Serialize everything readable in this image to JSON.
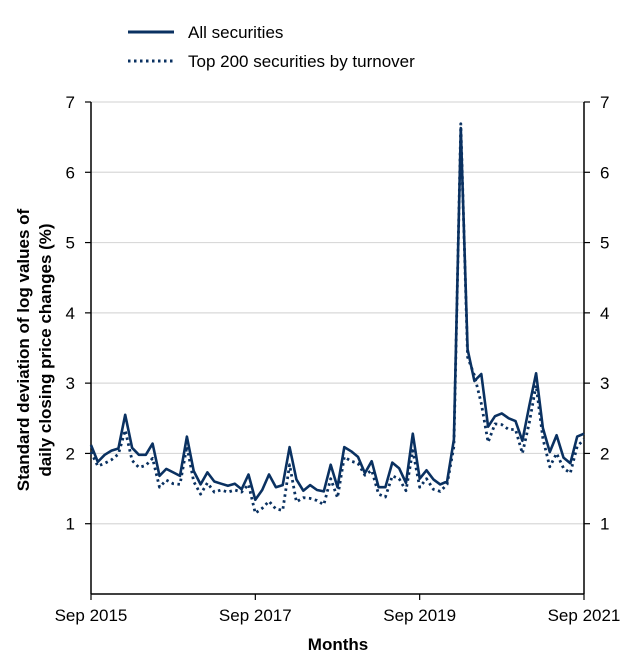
{
  "chart_data": {
    "type": "line",
    "xlabel": "Months",
    "ylabel_line1": "Standard deviation of log values of",
    "ylabel_line2": "daily closing price changes (%)",
    "ylim": [
      0,
      7
    ],
    "yticks": [
      1,
      2,
      3,
      4,
      5,
      6,
      7
    ],
    "xlim": [
      "2015-09",
      "2021-09"
    ],
    "xticks": [
      {
        "date": "2015-09",
        "label": "Sep 2015"
      },
      {
        "date": "2017-09",
        "label": "Sep 2017"
      },
      {
        "date": "2019-09",
        "label": "Sep 2019"
      },
      {
        "date": "2021-09",
        "label": "Sep 2021"
      }
    ],
    "grid": true,
    "legend_position": "top-left",
    "colors": {
      "series": "#0a3161",
      "grid": "#d9d9d9"
    },
    "x": [
      "2015-09",
      "2015-10",
      "2015-11",
      "2015-12",
      "2016-01",
      "2016-02",
      "2016-03",
      "2016-04",
      "2016-05",
      "2016-06",
      "2016-07",
      "2016-08",
      "2016-09",
      "2016-10",
      "2016-11",
      "2016-12",
      "2017-01",
      "2017-02",
      "2017-03",
      "2017-04",
      "2017-05",
      "2017-06",
      "2017-07",
      "2017-08",
      "2017-09",
      "2017-10",
      "2017-11",
      "2017-12",
      "2018-01",
      "2018-02",
      "2018-03",
      "2018-04",
      "2018-05",
      "2018-06",
      "2018-07",
      "2018-08",
      "2018-09",
      "2018-10",
      "2018-11",
      "2018-12",
      "2019-01",
      "2019-02",
      "2019-03",
      "2019-04",
      "2019-05",
      "2019-06",
      "2019-07",
      "2019-08",
      "2019-09",
      "2019-10",
      "2019-11",
      "2019-12",
      "2020-01",
      "2020-02",
      "2020-03",
      "2020-04",
      "2020-05",
      "2020-06",
      "2020-07",
      "2020-08",
      "2020-09",
      "2020-10",
      "2020-11",
      "2020-12",
      "2021-01",
      "2021-02",
      "2021-03",
      "2021-04",
      "2021-05",
      "2021-06",
      "2021-07",
      "2021-08",
      "2021-09"
    ],
    "series": [
      {
        "name": "All securities",
        "style": "solid",
        "values": [
          2.12,
          1.88,
          1.98,
          2.04,
          2.07,
          2.55,
          2.08,
          1.98,
          1.98,
          2.14,
          1.68,
          1.78,
          1.73,
          1.68,
          2.24,
          1.75,
          1.56,
          1.73,
          1.6,
          1.57,
          1.54,
          1.57,
          1.49,
          1.7,
          1.34,
          1.48,
          1.7,
          1.52,
          1.55,
          2.09,
          1.63,
          1.47,
          1.55,
          1.48,
          1.46,
          1.84,
          1.52,
          2.09,
          2.03,
          1.95,
          1.72,
          1.89,
          1.52,
          1.52,
          1.87,
          1.79,
          1.58,
          2.28,
          1.64,
          1.76,
          1.63,
          1.56,
          1.6,
          2.2,
          6.63,
          3.48,
          3.03,
          3.13,
          2.38,
          2.53,
          2.57,
          2.5,
          2.46,
          2.18,
          2.67,
          3.14,
          2.36,
          2.02,
          2.26,
          1.94,
          1.86,
          2.24,
          2.28
        ]
      },
      {
        "name": "Top 200 securities by turnover",
        "style": "dotted",
        "values": [
          2.02,
          1.82,
          1.86,
          1.91,
          1.99,
          2.33,
          1.9,
          1.8,
          1.83,
          1.93,
          1.52,
          1.62,
          1.57,
          1.56,
          2.1,
          1.6,
          1.42,
          1.58,
          1.45,
          1.48,
          1.45,
          1.48,
          1.45,
          1.56,
          1.15,
          1.22,
          1.32,
          1.21,
          1.19,
          1.84,
          1.31,
          1.37,
          1.36,
          1.33,
          1.27,
          1.64,
          1.37,
          1.95,
          1.89,
          1.86,
          1.69,
          1.76,
          1.42,
          1.38,
          1.68,
          1.64,
          1.47,
          2.04,
          1.52,
          1.64,
          1.49,
          1.46,
          1.56,
          2.1,
          6.69,
          3.37,
          3.11,
          2.71,
          2.16,
          2.42,
          2.41,
          2.34,
          2.34,
          2.0,
          2.43,
          2.97,
          2.21,
          1.81,
          2.0,
          1.79,
          1.72,
          2.1,
          2.2
        ]
      }
    ]
  }
}
